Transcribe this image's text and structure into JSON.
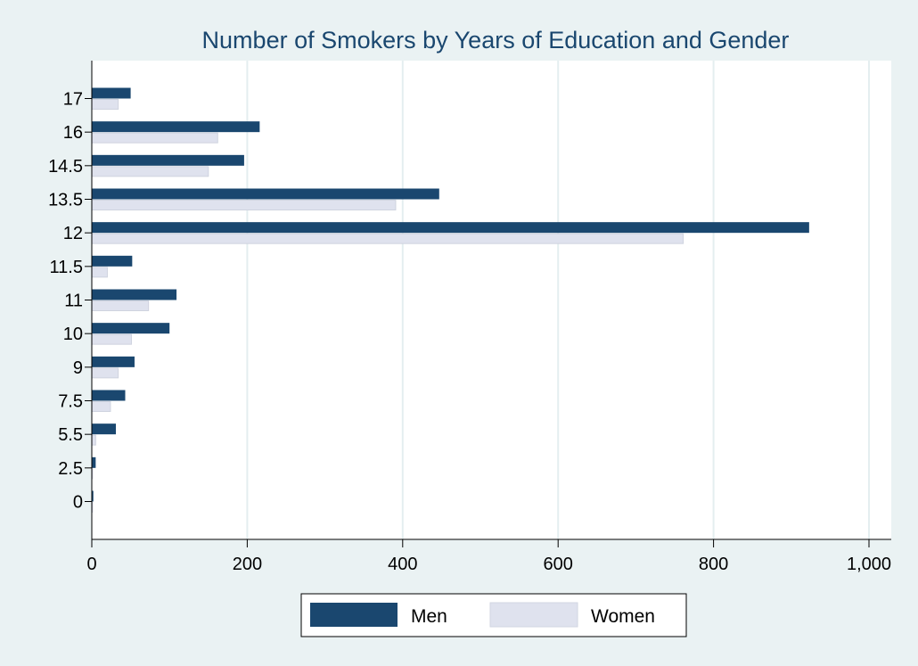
{
  "chart_data": {
    "type": "bar",
    "orientation": "horizontal",
    "title": "Number of Smokers by Years of Education and Gender",
    "xlabel": "",
    "ylabel": "",
    "categories": [
      "0",
      "2.5",
      "5.5",
      "7.5",
      "9",
      "10",
      "11",
      "11.5",
      "12",
      "13.5",
      "14.5",
      "16",
      "17"
    ],
    "series": [
      {
        "name": "Men",
        "color": "#1a476f",
        "values": [
          2,
          5,
          31,
          43,
          55,
          100,
          109,
          52,
          923,
          447,
          196,
          216,
          50
        ]
      },
      {
        "name": "Women",
        "color": "#dfe2ee",
        "values": [
          1,
          1,
          5,
          24,
          34,
          51,
          73,
          20,
          761,
          391,
          150,
          162,
          34
        ]
      }
    ],
    "xlim": [
      0,
      1000
    ],
    "xticks": [
      0,
      200,
      400,
      600,
      800,
      1000
    ],
    "xtick_labels": [
      "0",
      "200",
      "400",
      "600",
      "800",
      "1,000"
    ],
    "grid": true,
    "legend_position": "bottom"
  },
  "colors": {
    "background": "#eaf2f3",
    "plot_background": "#ffffff",
    "grid": "#e4eef0",
    "men": "#1a476f",
    "women": "#dfe2ee"
  }
}
